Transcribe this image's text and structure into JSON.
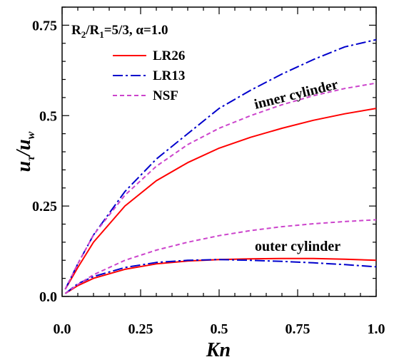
{
  "chart_data": {
    "type": "line",
    "title": "",
    "params_label": {
      "r_pre": "R",
      "r2": "2",
      "r_mid": "/R",
      "r1": "1",
      "r_post": "=5/3, ",
      "alpha": "α=1.0"
    },
    "xlabel": "Kn",
    "ylabel": {
      "u1": "u",
      "s1": "τ",
      "slash": "/",
      "u2": "u",
      "s2": "w"
    },
    "xlim": [
      0,
      1.0
    ],
    "ylim": [
      0,
      0.8
    ],
    "x_ticks": [
      0.0,
      0.25,
      0.5,
      0.75,
      1.0
    ],
    "x_tick_labels": [
      "0.0",
      "0.25",
      "0.5",
      "0.75",
      "1.0"
    ],
    "y_ticks": [
      0.0,
      0.25,
      0.5,
      0.75
    ],
    "y_tick_labels": [
      "0.0",
      "0.25",
      "0.5",
      "0.75"
    ],
    "grid": false,
    "legend_position": "top-left",
    "legend": [
      {
        "name": "LR26",
        "color": "#ff0000",
        "dash": "solid"
      },
      {
        "name": "LR13",
        "color": "#0000cc",
        "dash": "dash-dot"
      },
      {
        "name": "NSF",
        "color": "#cc44cc",
        "dash": "dashed"
      }
    ],
    "annotations": {
      "inner": "inner cylinder",
      "outer": "outer cylinder"
    },
    "series": [
      {
        "group": "inner cylinder",
        "legend_index": 0,
        "x": [
          0.01,
          0.05,
          0.1,
          0.2,
          0.3,
          0.4,
          0.5,
          0.6,
          0.7,
          0.8,
          0.9,
          1.0
        ],
        "y": [
          0.02,
          0.08,
          0.15,
          0.25,
          0.32,
          0.37,
          0.41,
          0.44,
          0.465,
          0.487,
          0.505,
          0.52
        ]
      },
      {
        "group": "inner cylinder",
        "legend_index": 1,
        "x": [
          0.01,
          0.05,
          0.1,
          0.2,
          0.3,
          0.4,
          0.5,
          0.6,
          0.7,
          0.8,
          0.9,
          1.0
        ],
        "y": [
          0.02,
          0.09,
          0.17,
          0.29,
          0.38,
          0.45,
          0.52,
          0.57,
          0.615,
          0.655,
          0.69,
          0.71
        ]
      },
      {
        "group": "inner cylinder",
        "legend_index": 2,
        "x": [
          0.01,
          0.05,
          0.1,
          0.2,
          0.3,
          0.4,
          0.5,
          0.6,
          0.7,
          0.8,
          0.9,
          1.0
        ],
        "y": [
          0.02,
          0.09,
          0.17,
          0.28,
          0.36,
          0.42,
          0.465,
          0.5,
          0.53,
          0.555,
          0.575,
          0.59
        ]
      },
      {
        "group": "outer cylinder",
        "legend_index": 0,
        "x": [
          0.01,
          0.05,
          0.1,
          0.2,
          0.3,
          0.4,
          0.5,
          0.6,
          0.7,
          0.8,
          0.9,
          1.0
        ],
        "y": [
          0.008,
          0.03,
          0.05,
          0.075,
          0.09,
          0.098,
          0.102,
          0.104,
          0.105,
          0.105,
          0.103,
          0.1
        ]
      },
      {
        "group": "outer cylinder",
        "legend_index": 1,
        "x": [
          0.01,
          0.05,
          0.1,
          0.2,
          0.3,
          0.4,
          0.5,
          0.6,
          0.7,
          0.8,
          0.9,
          1.0
        ],
        "y": [
          0.008,
          0.035,
          0.055,
          0.08,
          0.094,
          0.1,
          0.102,
          0.1,
          0.097,
          0.093,
          0.088,
          0.082
        ]
      },
      {
        "group": "outer cylinder",
        "legend_index": 2,
        "x": [
          0.01,
          0.05,
          0.1,
          0.2,
          0.3,
          0.4,
          0.5,
          0.6,
          0.7,
          0.8,
          0.9,
          1.0
        ],
        "y": [
          0.008,
          0.033,
          0.06,
          0.1,
          0.128,
          0.15,
          0.168,
          0.182,
          0.193,
          0.201,
          0.207,
          0.212
        ]
      }
    ]
  }
}
